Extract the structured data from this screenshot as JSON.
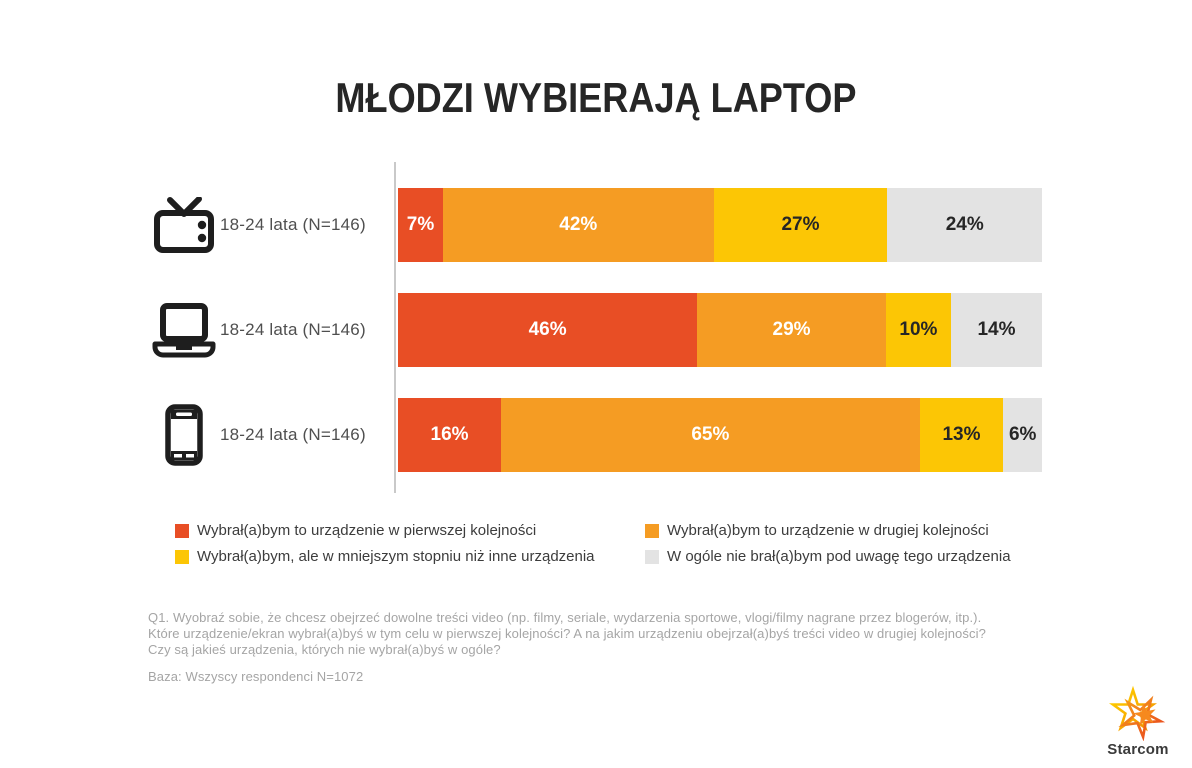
{
  "title": "MŁODZI WYBIERAJĄ LAPTOP",
  "chart_data": {
    "type": "bar",
    "orientation": "horizontal",
    "stacked": true,
    "categories": [
      "TV",
      "Laptop",
      "Smartfon"
    ],
    "rows": [
      {
        "icon": "tv-icon",
        "label": "18-24 lata (N=146)"
      },
      {
        "icon": "laptop-icon",
        "label": "18-24 lata (N=146)"
      },
      {
        "icon": "smartphone-icon",
        "label": "18-24 lata (N=146)"
      }
    ],
    "series": [
      {
        "name": "Wybrał(a)bym to urządzenie w pierwszej kolejności",
        "color": "#E84E25",
        "label_color": "#FFFFFF",
        "values": [
          7,
          46,
          16
        ]
      },
      {
        "name": "Wybrał(a)bym to urządzenie w drugiej kolejności",
        "color": "#F59C23",
        "label_color": "#FFFFFF",
        "values": [
          42,
          29,
          65
        ]
      },
      {
        "name": "Wybrał(a)bym, ale w mniejszym stopniu niż inne urządzenia",
        "color": "#FCC605",
        "label_color": "#262626",
        "values": [
          27,
          10,
          13
        ]
      },
      {
        "name": "W ogóle nie brał(a)bym pod uwagę tego urządzenia",
        "color": "#E3E3E3",
        "label_color": "#262626",
        "values": [
          24,
          14,
          6
        ]
      }
    ],
    "xlim": [
      0,
      100
    ],
    "value_suffix": "%",
    "legend_position": "bottom"
  },
  "footnote": {
    "lines": [
      "Q1. Wyobraź sobie, że chcesz obejrzeć dowolne treści video (np. filmy, seriale, wydarzenia sportowe, vlogi/filmy nagrane przez blogerów, itp.).",
      "Które urządzenie/ekran wybrał(a)byś w tym celu w pierwszej kolejności? A na jakim urządzeniu obejrzał(a)byś treści video w drugiej kolejności?",
      "Czy są jakieś urządzenia, których nie wybrał(a)byś w ogóle?"
    ],
    "base": "Baza: Wszyscy respondenci N=1072"
  },
  "logo": {
    "text": "Starcom"
  }
}
